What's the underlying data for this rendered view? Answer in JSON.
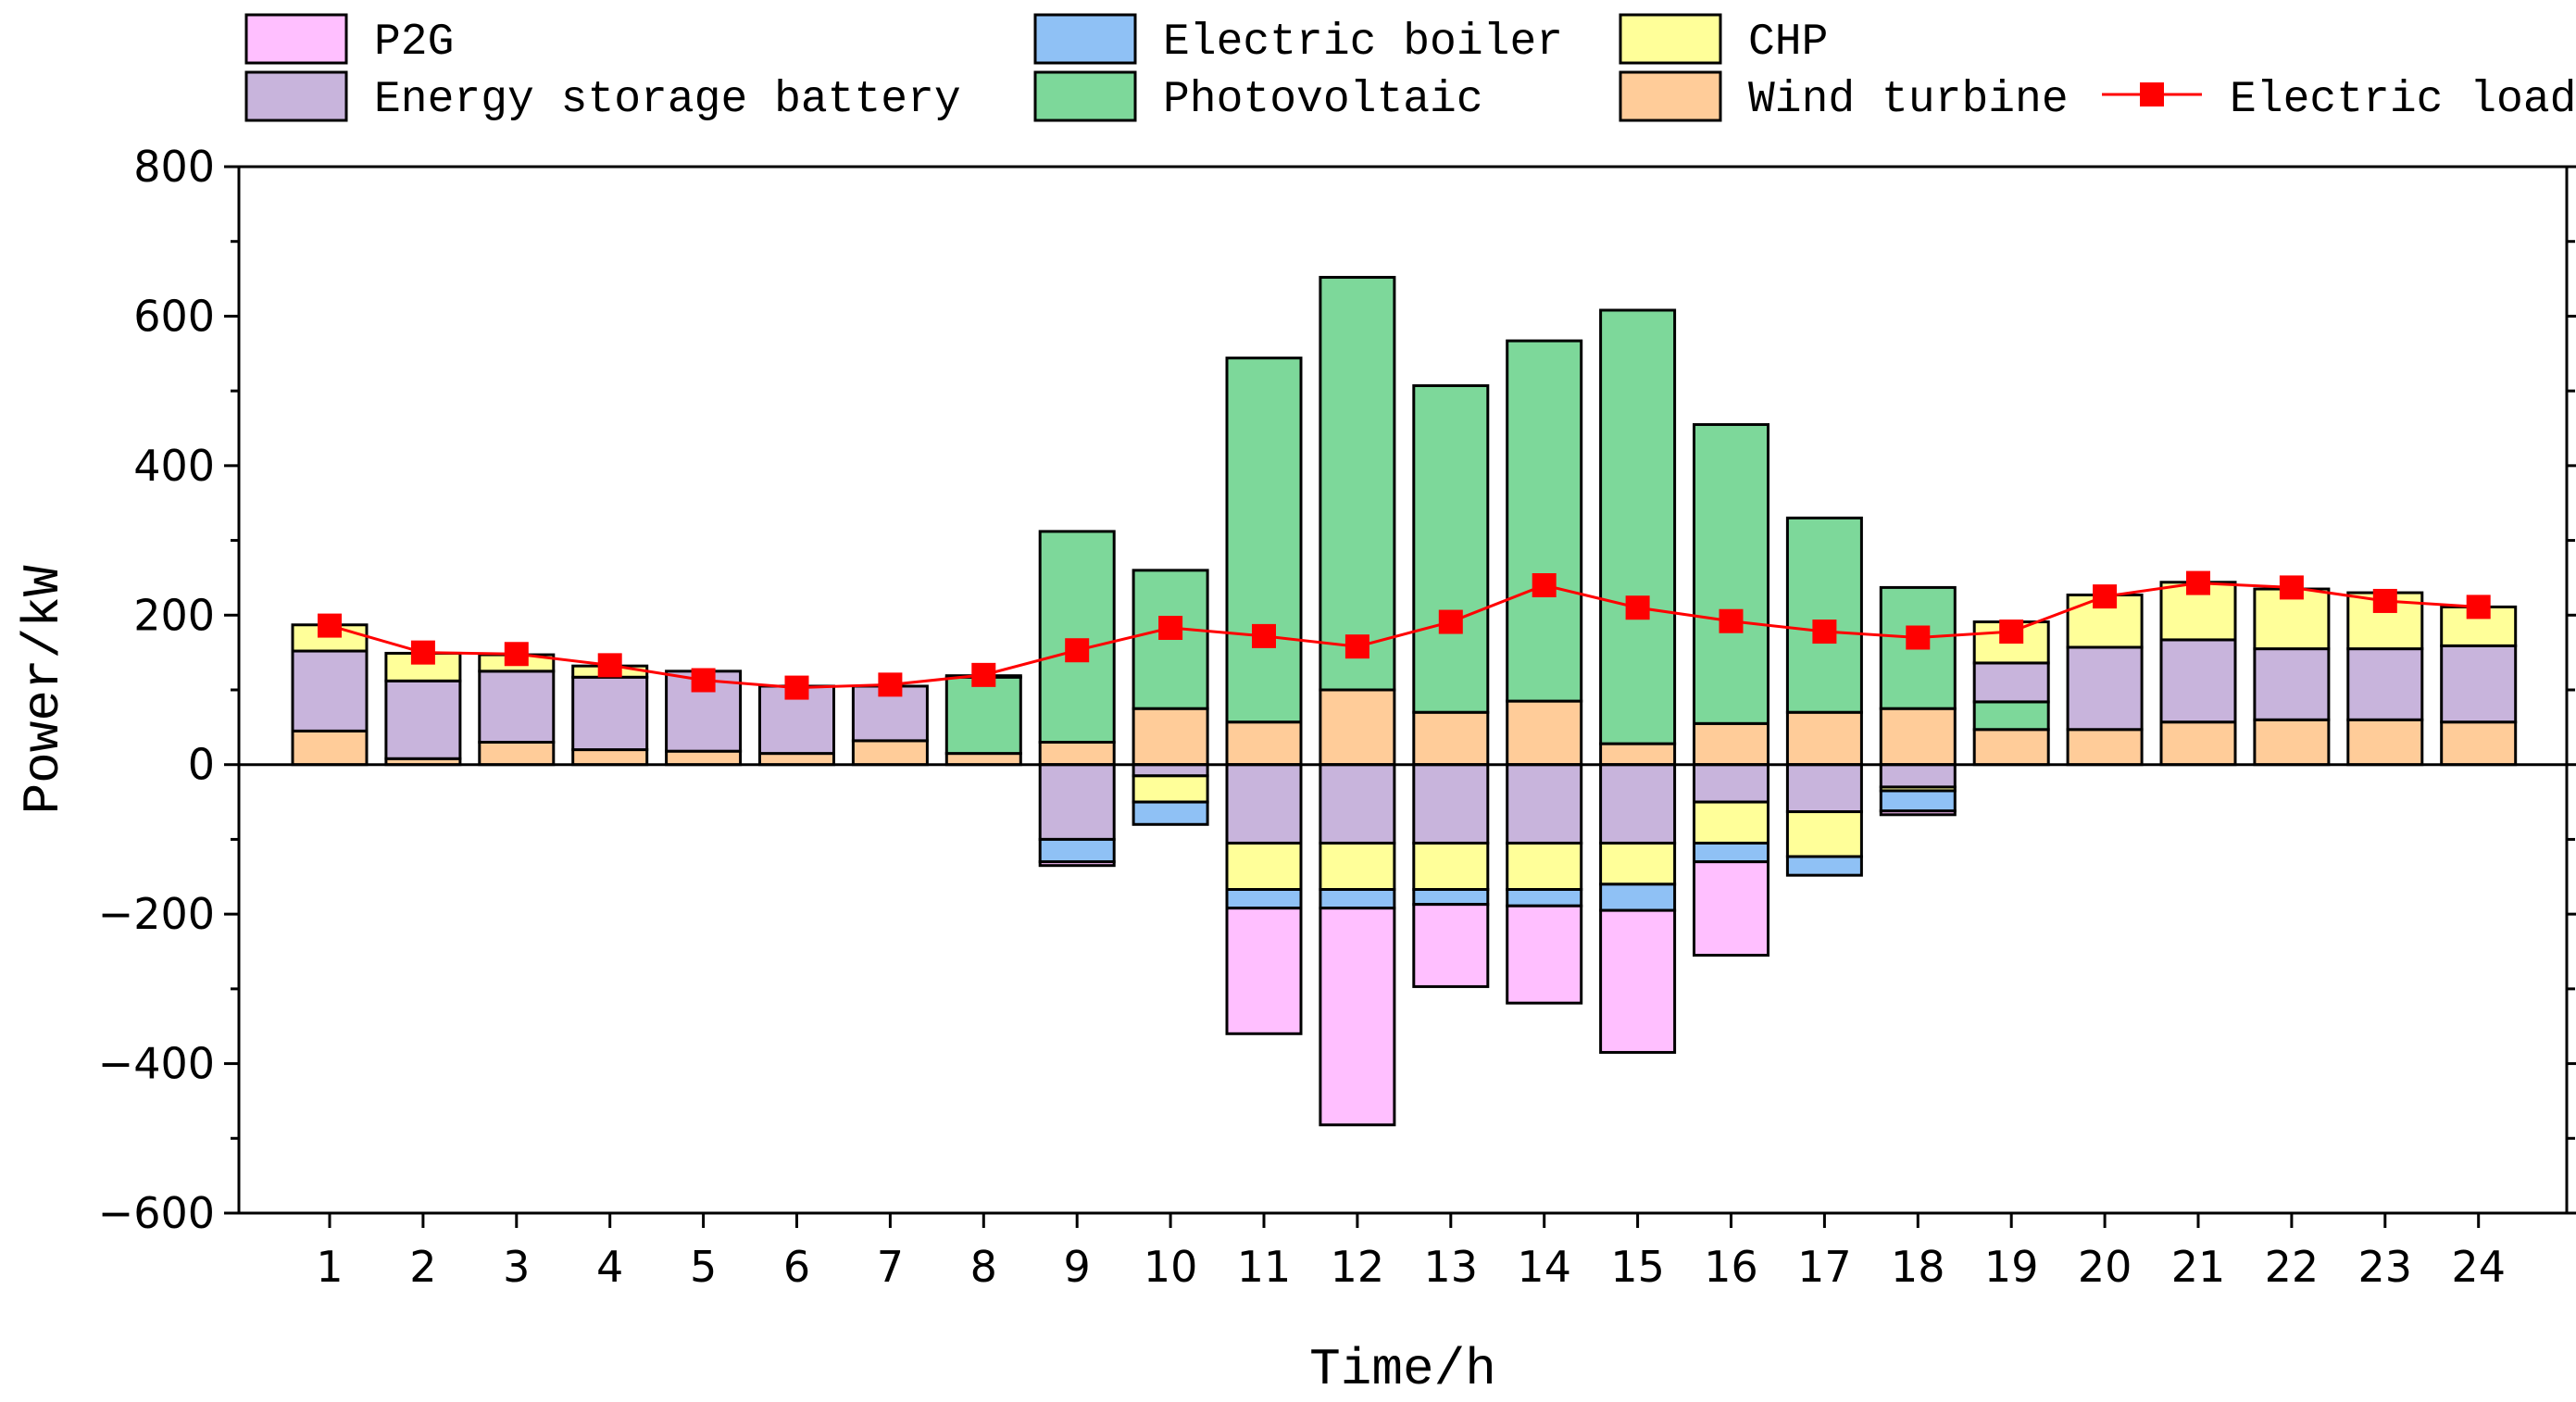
{
  "chart_data": {
    "type": "bar",
    "subtype": "stacked bar with line",
    "title": "",
    "xlabel": "Time/h",
    "ylabel": "Power/kW",
    "ylim": [
      -600,
      800
    ],
    "yticks": [
      -600,
      -400,
      -200,
      0,
      200,
      400,
      600,
      800
    ],
    "categories": [
      "1",
      "2",
      "3",
      "4",
      "5",
      "6",
      "7",
      "8",
      "9",
      "10",
      "11",
      "12",
      "13",
      "14",
      "15",
      "16",
      "17",
      "18",
      "19",
      "20",
      "21",
      "22",
      "23",
      "24"
    ],
    "positive_stack_order": [
      "Wind turbine",
      "Photovoltaic",
      "Energy storage battery",
      "CHP"
    ],
    "negative_stack_order": [
      "Energy storage battery",
      "CHP",
      "Electric boiler",
      "P2G"
    ],
    "series": [
      {
        "name": "P2G",
        "color": "#FFBFFF",
        "values": [
          0,
          0,
          0,
          0,
          0,
          0,
          0,
          0,
          -5,
          0,
          -168,
          -290,
          -110,
          -130,
          -190,
          -125,
          0,
          -5,
          0,
          0,
          0,
          0,
          0,
          0
        ]
      },
      {
        "name": "Electric boiler",
        "color": "#8FC1F5",
        "values": [
          0,
          0,
          0,
          0,
          0,
          0,
          0,
          0,
          -30,
          -30,
          -25,
          -25,
          -20,
          -22,
          -35,
          -25,
          -25,
          -27,
          0,
          0,
          0,
          0,
          0,
          0
        ]
      },
      {
        "name": "CHP",
        "color": "#FFFF99",
        "values": [
          35,
          37,
          22,
          15,
          0,
          0,
          0,
          0,
          0,
          -35,
          -62,
          -62,
          -62,
          -62,
          -55,
          -55,
          -60,
          -5,
          55,
          70,
          77,
          80,
          75,
          52
        ]
      },
      {
        "name": "Energy storage battery",
        "color": "#C8B4DC",
        "values": [
          107,
          104,
          95,
          97,
          107,
          90,
          73,
          2,
          -100,
          -15,
          -105,
          -105,
          -105,
          -105,
          -105,
          -50,
          -63,
          -30,
          52,
          110,
          110,
          95,
          95,
          102
        ]
      },
      {
        "name": "Photovoltaic",
        "color": "#7DD89A",
        "values": [
          0,
          0,
          0,
          0,
          0,
          0,
          0,
          102,
          282,
          185,
          487,
          552,
          437,
          482,
          580,
          400,
          260,
          162,
          37,
          0,
          0,
          0,
          0,
          0
        ]
      },
      {
        "name": "Wind turbine",
        "color": "#FFCC99",
        "values": [
          45,
          8,
          30,
          20,
          18,
          15,
          32,
          15,
          30,
          75,
          57,
          100,
          70,
          85,
          28,
          55,
          70,
          75,
          47,
          47,
          57,
          60,
          60,
          57
        ]
      }
    ],
    "line_series": {
      "name": "Electric load",
      "color": "#FF0000",
      "marker": "square",
      "values": [
        186,
        150,
        148,
        133,
        113,
        103,
        107,
        120,
        153,
        183,
        172,
        158,
        191,
        240,
        210,
        192,
        178,
        170,
        178,
        225,
        243,
        237,
        219,
        211
      ]
    },
    "legend": {
      "placement": "top",
      "entries": [
        {
          "label": "P2G",
          "series": "P2G",
          "kind": "box"
        },
        {
          "label": "Electric boiler",
          "series": "Electric boiler",
          "kind": "box"
        },
        {
          "label": "CHP",
          "series": "CHP",
          "kind": "box"
        },
        {
          "label": "Energy storage battery",
          "series": "Energy storage battery",
          "kind": "box"
        },
        {
          "label": "Photovoltaic",
          "series": "Photovoltaic",
          "kind": "box"
        },
        {
          "label": "Wind turbine",
          "series": "Wind turbine",
          "kind": "box"
        },
        {
          "label": "Electric load",
          "series": "Electric load",
          "kind": "line"
        }
      ]
    }
  }
}
